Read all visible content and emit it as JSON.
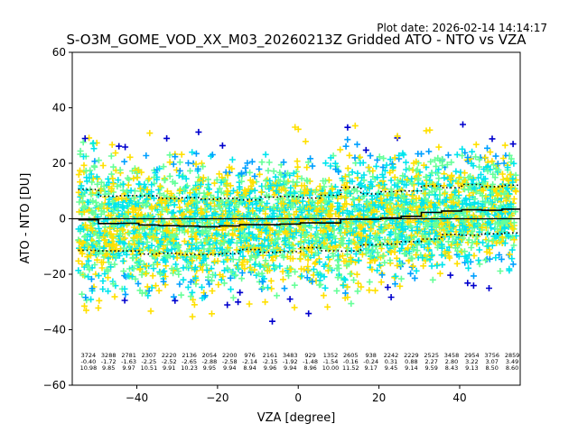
{
  "chart_data": {
    "type": "scatter",
    "plot_date": "Plot date: 2026-02-14 14:14:17",
    "title": "S-O3M_GOME_VOD_XX_M03_20260213Z Gridded ATO - NTO vs VZA",
    "xlabel": "VZA [degree]",
    "ylabel": "ATO - NTO [DU]",
    "xlim": [
      -56,
      55
    ],
    "ylim": [
      -60,
      60
    ],
    "xticks": [
      -40,
      -20,
      0,
      20,
      40
    ],
    "yticks": [
      -60,
      -40,
      -20,
      0,
      20,
      40,
      60
    ],
    "xtick_labels": [
      "−40",
      "−20",
      "0",
      "20",
      "40"
    ],
    "ytick_labels": [
      "−60",
      "−40",
      "−20",
      "0",
      "20",
      "40",
      "60"
    ],
    "marker": "+",
    "colormap": [
      "#0000cd",
      "#00a0ff",
      "#00e5ee",
      "#66ff99",
      "#ffe000"
    ],
    "bins": [
      {
        "vza": -52,
        "count": "3724",
        "mean": "-0.40",
        "std": "10.98"
      },
      {
        "vza": -47,
        "count": "3288",
        "mean": "-1.72",
        "std": "9.85"
      },
      {
        "vza": -42,
        "count": "2781",
        "mean": "-1.63",
        "std": "9.97"
      },
      {
        "vza": -37,
        "count": "2307",
        "mean": "-2.25",
        "std": "10.51"
      },
      {
        "vza": -32,
        "count": "2220",
        "mean": "-2.52",
        "std": "9.91"
      },
      {
        "vza": -27,
        "count": "2136",
        "mean": "-2.65",
        "std": "10.23"
      },
      {
        "vza": -22,
        "count": "2054",
        "mean": "-2.88",
        "std": "9.95"
      },
      {
        "vza": -17,
        "count": "2200",
        "mean": "-2.58",
        "std": "9.94"
      },
      {
        "vza": -12,
        "count": "976",
        "mean": "-2.14",
        "std": "8.94"
      },
      {
        "vza": -7,
        "count": "2161",
        "mean": "-2.15",
        "std": "9.96"
      },
      {
        "vza": -2,
        "count": "3483",
        "mean": "-1.92",
        "std": "9.94"
      },
      {
        "vza": 3,
        "count": "929",
        "mean": "-1.48",
        "std": "8.96"
      },
      {
        "vza": 8,
        "count": "1352",
        "mean": "-1.54",
        "std": "10.00"
      },
      {
        "vza": 13,
        "count": "2605",
        "mean": "-0.16",
        "std": "11.52"
      },
      {
        "vza": 18,
        "count": "938",
        "mean": "-0.24",
        "std": "9.17"
      },
      {
        "vza": 23,
        "count": "2242",
        "mean": "0.31",
        "std": "9.45"
      },
      {
        "vza": 28,
        "count": "2229",
        "mean": "0.88",
        "std": "9.14"
      },
      {
        "vza": 33,
        "count": "2525",
        "mean": "2.27",
        "std": "9.59"
      },
      {
        "vza": 38,
        "count": "3458",
        "mean": "2.80",
        "std": "8.43"
      },
      {
        "vza": 43,
        "count": "2954",
        "mean": "3.22",
        "std": "9.13"
      },
      {
        "vza": 48,
        "count": "3756",
        "mean": "3.07",
        "std": "8.50"
      },
      {
        "vza": 53,
        "count": "2859",
        "mean": "3.49",
        "std": "8.60"
      }
    ]
  }
}
